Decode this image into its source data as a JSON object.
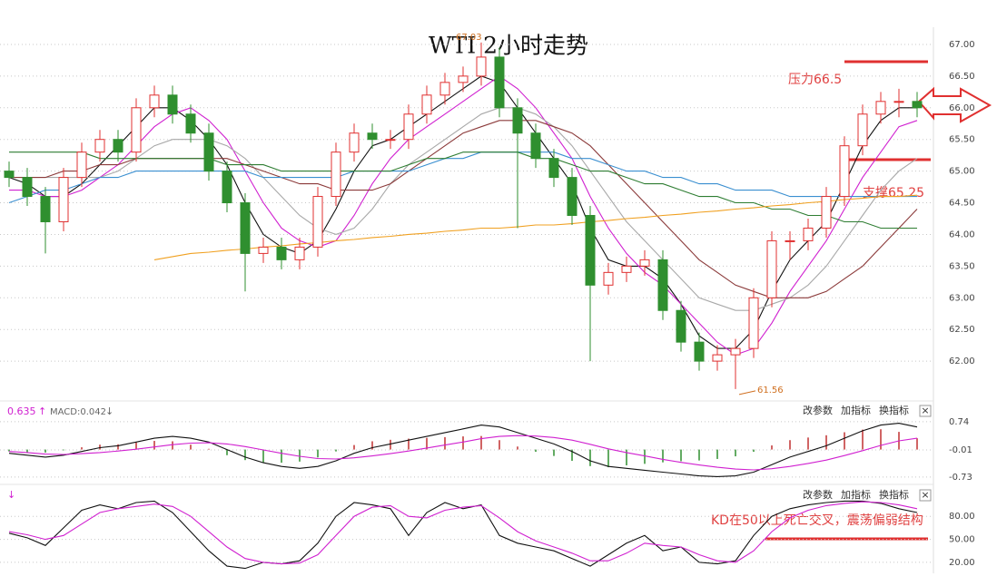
{
  "chart_data": [
    {
      "type": "candlestick",
      "title": "WTI 2小时走势",
      "open": [
        65.0,
        64.9,
        64.6,
        64.2,
        64.9,
        65.3,
        65.5,
        65.3,
        66.0,
        66.2,
        65.9,
        65.6,
        65.0,
        64.5,
        63.7,
        63.8,
        63.6,
        63.8,
        64.6,
        65.3,
        65.6,
        65.5,
        65.5,
        65.9,
        66.2,
        66.4,
        66.5,
        66.8,
        66.0,
        65.6,
        65.2,
        64.9,
        64.3,
        63.2,
        63.4,
        63.5,
        63.6,
        62.8,
        62.3,
        62.0,
        62.1,
        62.2,
        63.0,
        63.9,
        63.9,
        64.1,
        64.6,
        65.4,
        65.9,
        66.1,
        66.1
      ],
      "high": [
        65.15,
        65.05,
        64.75,
        65.05,
        65.45,
        65.65,
        65.65,
        66.15,
        66.35,
        66.35,
        66.05,
        65.75,
        65.15,
        64.65,
        63.95,
        63.95,
        63.95,
        64.75,
        65.45,
        65.75,
        65.75,
        65.65,
        66.05,
        66.35,
        66.55,
        66.65,
        67.03,
        66.95,
        66.15,
        65.75,
        65.35,
        65.05,
        64.45,
        63.55,
        63.65,
        63.75,
        63.75,
        62.95,
        62.45,
        62.25,
        62.35,
        63.15,
        64.05,
        64.05,
        64.25,
        64.75,
        65.55,
        66.05,
        66.25,
        66.3,
        66.25
      ],
      "low": [
        64.75,
        64.45,
        63.7,
        64.05,
        64.75,
        65.15,
        65.15,
        65.15,
        65.85,
        65.75,
        65.45,
        64.85,
        64.35,
        63.1,
        63.55,
        63.45,
        63.45,
        63.65,
        64.45,
        65.15,
        65.35,
        65.35,
        65.35,
        65.75,
        66.05,
        66.25,
        66.35,
        65.85,
        64.1,
        65.05,
        64.75,
        64.15,
        62.0,
        63.05,
        63.25,
        63.35,
        62.65,
        62.15,
        61.85,
        61.85,
        61.56,
        62.05,
        62.85,
        63.6,
        63.75,
        63.95,
        64.45,
        65.25,
        65.75,
        65.85,
        65.85
      ],
      "close": [
        64.9,
        64.6,
        64.2,
        64.9,
        65.3,
        65.5,
        65.3,
        66.0,
        66.2,
        65.9,
        65.6,
        65.0,
        64.5,
        63.7,
        63.8,
        63.6,
        63.8,
        64.6,
        65.3,
        65.6,
        65.5,
        65.5,
        65.9,
        66.2,
        66.4,
        66.5,
        66.8,
        66.0,
        65.6,
        65.2,
        64.9,
        64.3,
        63.2,
        63.4,
        63.5,
        63.6,
        62.8,
        62.3,
        62.0,
        62.1,
        62.2,
        63.0,
        63.9,
        63.9,
        64.1,
        64.6,
        65.4,
        65.9,
        66.1,
        66.1,
        66.0
      ],
      "up_color": "#e03030",
      "down_color": "#2f8f2f",
      "lines": [
        {
          "color": "#111111",
          "values": [
            64.9,
            64.8,
            64.6,
            64.6,
            64.8,
            65.1,
            65.4,
            65.7,
            66.0,
            66.0,
            65.8,
            65.5,
            65.1,
            64.5,
            64.0,
            63.8,
            63.7,
            63.9,
            64.4,
            65.0,
            65.4,
            65.5,
            65.7,
            65.9,
            66.1,
            66.3,
            66.5,
            66.4,
            66.0,
            65.6,
            65.2,
            64.8,
            64.1,
            63.6,
            63.5,
            63.5,
            63.3,
            62.9,
            62.4,
            62.2,
            62.2,
            62.5,
            63.1,
            63.6,
            63.9,
            64.2,
            64.8,
            65.4,
            65.8,
            66.0,
            66.0
          ]
        },
        {
          "color": "#d020d0",
          "values": [
            64.7,
            64.7,
            64.6,
            64.6,
            64.7,
            64.9,
            65.1,
            65.4,
            65.7,
            65.9,
            66.0,
            65.8,
            65.5,
            65.0,
            64.5,
            64.1,
            63.9,
            63.8,
            63.9,
            64.3,
            64.8,
            65.2,
            65.5,
            65.7,
            65.9,
            66.1,
            66.3,
            66.5,
            66.3,
            66.0,
            65.6,
            65.2,
            64.6,
            64.1,
            63.7,
            63.4,
            63.2,
            62.9,
            62.6,
            62.3,
            62.1,
            62.2,
            62.6,
            63.1,
            63.5,
            63.9,
            64.4,
            64.9,
            65.3,
            65.7,
            65.8
          ]
        },
        {
          "color": "#a8a8a8",
          "values": [
            64.9,
            64.9,
            64.9,
            64.9,
            64.9,
            64.9,
            65.0,
            65.2,
            65.4,
            65.5,
            65.5,
            65.5,
            65.4,
            65.2,
            64.9,
            64.6,
            64.3,
            64.1,
            64.0,
            64.1,
            64.4,
            64.8,
            65.1,
            65.3,
            65.5,
            65.7,
            65.9,
            66.0,
            66.0,
            65.9,
            65.7,
            65.4,
            65.0,
            64.6,
            64.2,
            63.9,
            63.6,
            63.3,
            63.0,
            62.9,
            62.8,
            62.8,
            62.9,
            63.0,
            63.2,
            63.5,
            63.9,
            64.3,
            64.7,
            65.0,
            65.2
          ]
        },
        {
          "color": "#8b3a3a",
          "values": [
            64.9,
            64.9,
            64.9,
            65.0,
            65.0,
            65.1,
            65.1,
            65.2,
            65.2,
            65.2,
            65.2,
            65.2,
            65.2,
            65.1,
            65.0,
            64.9,
            64.8,
            64.8,
            64.7,
            64.7,
            64.7,
            64.8,
            65.0,
            65.2,
            65.4,
            65.6,
            65.7,
            65.8,
            65.8,
            65.8,
            65.7,
            65.6,
            65.4,
            65.1,
            64.8,
            64.5,
            64.2,
            63.9,
            63.6,
            63.4,
            63.2,
            63.1,
            63.0,
            63.0,
            63.0,
            63.1,
            63.3,
            63.5,
            63.8,
            64.1,
            64.4
          ]
        },
        {
          "color": "#3a8fd0",
          "values": [
            64.5,
            64.6,
            64.7,
            64.7,
            64.8,
            64.9,
            64.9,
            65.0,
            65.0,
            65.0,
            65.0,
            65.0,
            65.0,
            65.0,
            64.9,
            64.9,
            64.9,
            64.9,
            64.9,
            65.0,
            65.0,
            65.0,
            65.0,
            65.1,
            65.2,
            65.2,
            65.3,
            65.3,
            65.3,
            65.3,
            65.3,
            65.2,
            65.2,
            65.1,
            65.0,
            65.0,
            64.9,
            64.9,
            64.8,
            64.8,
            64.7,
            64.7,
            64.7,
            64.6,
            64.6,
            64.6,
            64.6,
            64.6,
            64.6,
            64.6,
            64.6
          ]
        },
        {
          "color": "#2e7d32",
          "values": [
            65.3,
            65.3,
            65.3,
            65.3,
            65.3,
            65.2,
            65.2,
            65.2,
            65.2,
            65.2,
            65.2,
            65.2,
            65.1,
            65.1,
            65.1,
            65.0,
            65.0,
            65.0,
            65.0,
            65.0,
            65.0,
            65.0,
            65.1,
            65.2,
            65.2,
            65.3,
            65.3,
            65.3,
            65.3,
            65.2,
            65.2,
            65.1,
            65.0,
            65.0,
            64.9,
            64.8,
            64.8,
            64.7,
            64.6,
            64.6,
            64.5,
            64.5,
            64.4,
            64.4,
            64.3,
            64.3,
            64.2,
            64.2,
            64.1,
            64.1,
            64.1
          ]
        },
        {
          "color": "#f0a020",
          "values": [
            null,
            null,
            null,
            null,
            null,
            null,
            null,
            null,
            63.6,
            63.65,
            63.7,
            63.72,
            63.75,
            63.77,
            63.8,
            63.82,
            63.85,
            63.87,
            63.9,
            63.92,
            63.95,
            63.97,
            64.0,
            64.02,
            64.05,
            64.07,
            64.1,
            64.1,
            64.12,
            64.15,
            64.15,
            64.17,
            64.2,
            64.22,
            64.25,
            64.27,
            64.3,
            64.32,
            64.35,
            64.37,
            64.4,
            64.42,
            64.45,
            64.47,
            64.5,
            64.52,
            64.55,
            64.57,
            64.6,
            64.6,
            64.62
          ]
        }
      ],
      "high_label": "67.03",
      "low_label": "61.56",
      "resistance_label": "压力66.5",
      "support_label": "支撑65.25",
      "ylim": [
        61.4,
        67.2
      ],
      "yticks": [
        {
          "value": 67,
          "label": "67.00"
        },
        {
          "value": 66.5,
          "label": "66.50"
        },
        {
          "value": 66,
          "label": "66.00"
        },
        {
          "value": 65.5,
          "label": "65.50"
        },
        {
          "value": 65,
          "label": "65.00"
        },
        {
          "value": 64.5,
          "label": "64.50"
        },
        {
          "value": 64,
          "label": "64.00"
        },
        {
          "value": 63.5,
          "label": "63.50"
        },
        {
          "value": 63,
          "label": "63.00"
        },
        {
          "value": 62.5,
          "label": "62.50"
        },
        {
          "value": 62,
          "label": "62.00"
        }
      ],
      "grid": true
    },
    {
      "type": "macd",
      "header": [
        "0.635",
        "↑",
        "MACD:0.042",
        "↓"
      ],
      "buttons": [
        "改参数",
        "加指标",
        "换指标",
        "×"
      ],
      "histogram": [
        -0.05,
        -0.07,
        -0.08,
        -0.02,
        0.06,
        0.13,
        0.14,
        0.19,
        0.23,
        0.22,
        0.13,
        0.02,
        -0.15,
        -0.28,
        -0.34,
        -0.35,
        -0.32,
        -0.21,
        -0.05,
        0.12,
        0.22,
        0.26,
        0.29,
        0.31,
        0.33,
        0.35,
        0.36,
        0.25,
        0.08,
        -0.06,
        -0.17,
        -0.3,
        -0.44,
        -0.47,
        -0.42,
        -0.38,
        -0.34,
        -0.31,
        -0.29,
        -0.25,
        -0.18,
        -0.06,
        0.11,
        0.25,
        0.32,
        0.38,
        0.46,
        0.53,
        0.54,
        0.47,
        0.3
      ],
      "up_color": "#c03030",
      "down_color": "#2f8f2f",
      "lines": [
        {
          "color": "#111111",
          "values": [
            -0.1,
            -0.15,
            -0.2,
            -0.15,
            -0.05,
            0.05,
            0.1,
            0.2,
            0.3,
            0.35,
            0.3,
            0.2,
            0.0,
            -0.2,
            -0.35,
            -0.45,
            -0.5,
            -0.45,
            -0.3,
            -0.1,
            0.05,
            0.15,
            0.25,
            0.35,
            0.45,
            0.55,
            0.65,
            0.6,
            0.45,
            0.3,
            0.15,
            -0.05,
            -0.3,
            -0.45,
            -0.5,
            -0.55,
            -0.6,
            -0.65,
            -0.7,
            -0.72,
            -0.7,
            -0.6,
            -0.4,
            -0.2,
            -0.05,
            0.1,
            0.3,
            0.5,
            0.65,
            0.7,
            0.6
          ]
        },
        {
          "color": "#d020d0",
          "values": [
            -0.05,
            -0.08,
            -0.12,
            -0.13,
            -0.11,
            -0.08,
            -0.04,
            0.01,
            0.07,
            0.13,
            0.17,
            0.18,
            0.15,
            0.08,
            -0.01,
            -0.1,
            -0.18,
            -0.24,
            -0.25,
            -0.22,
            -0.17,
            -0.11,
            -0.04,
            0.04,
            0.12,
            0.2,
            0.29,
            0.35,
            0.37,
            0.36,
            0.32,
            0.25,
            0.14,
            0.02,
            -0.08,
            -0.17,
            -0.26,
            -0.34,
            -0.41,
            -0.47,
            -0.52,
            -0.54,
            -0.51,
            -0.45,
            -0.37,
            -0.28,
            -0.16,
            -0.03,
            0.11,
            0.23,
            0.3
          ]
        }
      ],
      "ylim": [
        -0.83,
        1.22
      ],
      "yticks": [
        0.74,
        -0.01,
        -0.73
      ],
      "grid": true
    },
    {
      "type": "kd",
      "header": [
        "↓"
      ],
      "buttons": [
        "改参数",
        "加指标",
        "换指标",
        "×"
      ],
      "annotation": "KD在50以上死亡交叉，震荡偏弱结构",
      "lines": [
        {
          "color": "#111111",
          "values": [
            58,
            52,
            42,
            65,
            88,
            95,
            90,
            98,
            100,
            85,
            60,
            35,
            15,
            12,
            20,
            18,
            22,
            45,
            80,
            98,
            95,
            90,
            55,
            85,
            98,
            90,
            95,
            55,
            45,
            40,
            35,
            25,
            15,
            30,
            45,
            55,
            35,
            40,
            20,
            18,
            22,
            55,
            80,
            90,
            95,
            98,
            100,
            100,
            97,
            90,
            85
          ]
        },
        {
          "color": "#d020d0",
          "values": [
            60,
            56,
            50,
            55,
            70,
            85,
            90,
            93,
            96,
            93,
            80,
            60,
            40,
            25,
            20,
            18,
            19,
            30,
            55,
            80,
            92,
            94,
            80,
            78,
            88,
            92,
            94,
            78,
            60,
            48,
            40,
            32,
            22,
            22,
            32,
            45,
            42,
            40,
            30,
            22,
            20,
            35,
            60,
            78,
            88,
            94,
            97,
            99,
            98,
            95,
            90
          ]
        }
      ],
      "ylim": [
        10.4,
        117
      ],
      "yticks": [
        {
          "value": 80,
          "label": "80.00"
        },
        {
          "value": 50,
          "label": "50.00"
        },
        {
          "value": 20,
          "label": "20.00"
        }
      ],
      "grid": true
    }
  ]
}
